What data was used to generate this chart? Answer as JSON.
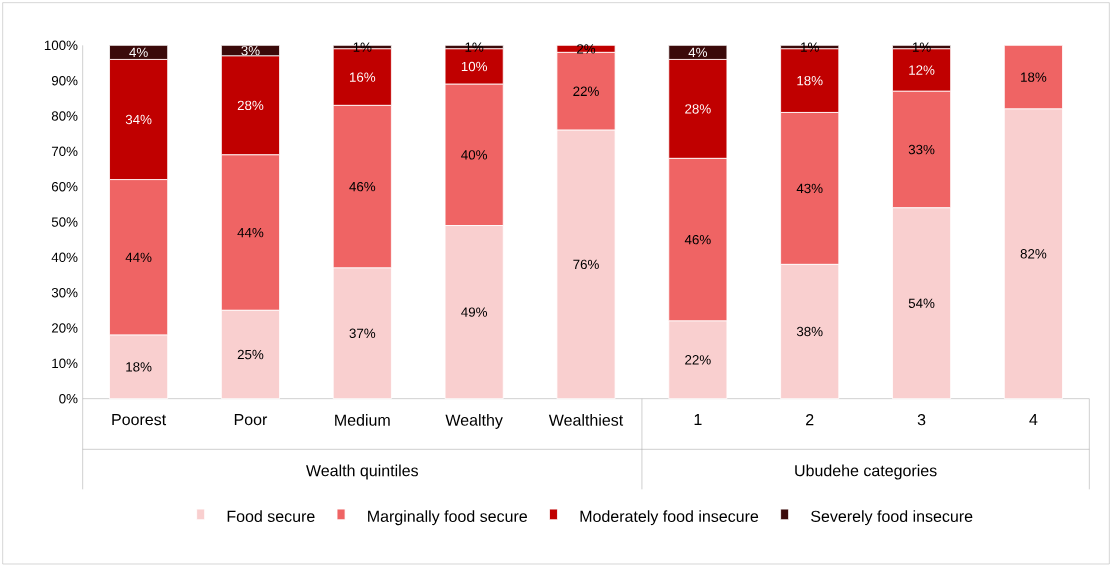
{
  "chart_data": {
    "type": "bar",
    "stacked": true,
    "categories": [
      "Poorest",
      "Poor",
      "Medium",
      "Wealthy",
      "Wealthiest",
      "1",
      "2",
      "3",
      "4"
    ],
    "series": [
      {
        "name": "Food secure",
        "color": "#f9cfcf",
        "values": [
          18,
          25,
          37,
          49,
          76,
          22,
          38,
          54,
          82
        ],
        "value_labels": [
          "18%",
          "25%",
          "37%",
          "49%",
          "76%",
          "22%",
          "38%",
          "54%",
          "82%"
        ]
      },
      {
        "name": "Marginally food secure",
        "color": "#ef6464",
        "values": [
          44,
          44,
          46,
          40,
          22,
          46,
          43,
          33,
          18
        ],
        "value_labels": [
          "44%",
          "44%",
          "46%",
          "40%",
          "22%",
          "46%",
          "43%",
          "33%",
          "18%"
        ]
      },
      {
        "name": "Moderately food insecure",
        "color": "#c00000",
        "values": [
          34,
          28,
          16,
          10,
          2,
          28,
          18,
          12,
          0
        ],
        "value_labels": [
          "34%",
          "28%",
          "16%",
          "10%",
          "2%",
          "28%",
          "18%",
          "12%",
          null
        ]
      },
      {
        "name": "Severely food insecure",
        "color": "#3b0a0a",
        "values": [
          4,
          3,
          1,
          1,
          0,
          4,
          1,
          1,
          0
        ],
        "value_labels": [
          "4%",
          "3%",
          "1%",
          "1%",
          null,
          "4%",
          "1%",
          "1%",
          null
        ]
      }
    ],
    "ylim": [
      0,
      100
    ],
    "yticks": [
      {
        "value": 0,
        "label": "0%"
      },
      {
        "value": 10,
        "label": "10%"
      },
      {
        "value": 20,
        "label": "20%"
      },
      {
        "value": 30,
        "label": "30%"
      },
      {
        "value": 40,
        "label": "40%"
      },
      {
        "value": 50,
        "label": "50%"
      },
      {
        "value": 60,
        "label": "60%"
      },
      {
        "value": 70,
        "label": "70%"
      },
      {
        "value": 80,
        "label": "80%"
      },
      {
        "value": 90,
        "label": "90%"
      },
      {
        "value": 100,
        "label": "100%"
      }
    ],
    "annotations": [
      "Wealth quintiles",
      "Ubudehe categories"
    ],
    "legend": "bottom",
    "grid": false
  }
}
